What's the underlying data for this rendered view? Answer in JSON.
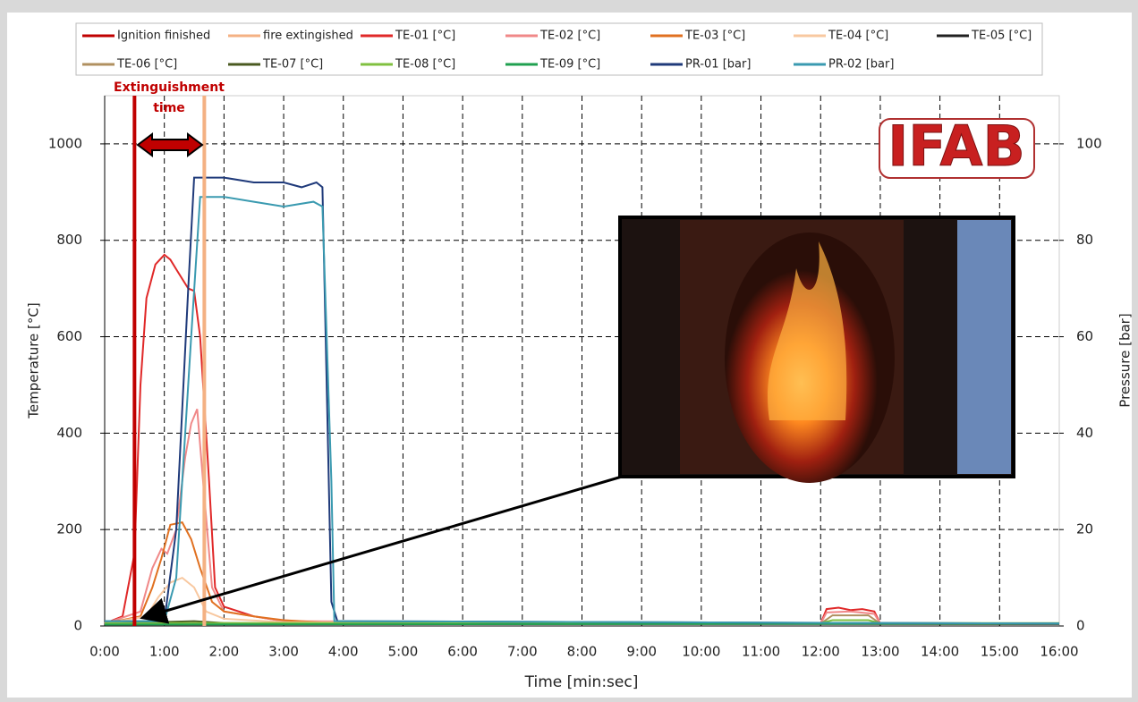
{
  "chart_data": {
    "type": "line",
    "x_label": "Time [min:sec]",
    "y_label": "Temperature [°C]",
    "y2_label": "Pressure [bar]",
    "annotation": [
      "Extinguishment",
      "time"
    ],
    "logo": "IFAB",
    "xlim": [
      0,
      16
    ],
    "ylim": [
      0,
      1100
    ],
    "y2lim": [
      0,
      110
    ],
    "grid": true,
    "xticks": [
      {
        "value": 0,
        "label": "0:00"
      },
      {
        "value": 1,
        "label": "1:00"
      },
      {
        "value": 2,
        "label": "2:00"
      },
      {
        "value": 3,
        "label": "3:00"
      },
      {
        "value": 4,
        "label": "4:00"
      },
      {
        "value": 5,
        "label": "5:00"
      },
      {
        "value": 6,
        "label": "6:00"
      },
      {
        "value": 7,
        "label": "7:00"
      },
      {
        "value": 8,
        "label": "8:00"
      },
      {
        "value": 9,
        "label": "9:00"
      },
      {
        "value": 10,
        "label": "10:00"
      },
      {
        "value": 11,
        "label": "11:00"
      },
      {
        "value": 12,
        "label": "12:00"
      },
      {
        "value": 13,
        "label": "13:00"
      },
      {
        "value": 14,
        "label": "14:00"
      },
      {
        "value": 15,
        "label": "15:00"
      },
      {
        "value": 16,
        "label": "16:00"
      }
    ],
    "yticks": [
      0,
      200,
      400,
      600,
      800,
      1000
    ],
    "y2ticks": [
      0,
      20,
      40,
      60,
      80,
      100
    ],
    "vlines": [
      {
        "name": "Ignition finished",
        "color": "#c00000",
        "x": 0.5
      },
      {
        "name": "fire extingished",
        "color": "#f4b183",
        "x": 1.67
      }
    ],
    "series": [
      {
        "name": "TE-01 [°C]",
        "color": "#e02828",
        "x": [
          0,
          0.3,
          0.5,
          0.6,
          0.7,
          0.85,
          1.0,
          1.1,
          1.2,
          1.4,
          1.5,
          1.6,
          1.75,
          1.85,
          2.0,
          2.5,
          3,
          4,
          12,
          12.1,
          12.3,
          12.5,
          12.7,
          12.9,
          13,
          16
        ],
        "values": [
          5,
          20,
          150,
          500,
          680,
          750,
          770,
          760,
          740,
          700,
          695,
          600,
          300,
          80,
          40,
          20,
          10,
          5,
          5,
          35,
          38,
          33,
          35,
          30,
          5,
          5
        ]
      },
      {
        "name": "TE-02 [°C]",
        "color": "#f08888",
        "x": [
          0,
          0.6,
          0.8,
          0.95,
          1.05,
          1.2,
          1.35,
          1.45,
          1.55,
          1.65,
          1.8,
          2.0,
          3,
          12,
          12.1,
          12.5,
          12.9,
          13,
          16
        ],
        "values": [
          5,
          30,
          120,
          160,
          150,
          200,
          350,
          420,
          450,
          300,
          80,
          30,
          10,
          5,
          28,
          30,
          25,
          5,
          5
        ]
      },
      {
        "name": "TE-03 [°C]",
        "color": "#e07020",
        "x": [
          0,
          0.6,
          0.8,
          0.95,
          1.1,
          1.3,
          1.45,
          1.6,
          1.8,
          2.0,
          2.5,
          3,
          4,
          16
        ],
        "values": [
          5,
          20,
          80,
          140,
          210,
          215,
          180,
          120,
          50,
          30,
          20,
          12,
          5,
          5
        ]
      },
      {
        "name": "TE-04 [°C]",
        "color": "#f8c8a0",
        "x": [
          0,
          0.7,
          0.9,
          1.1,
          1.3,
          1.5,
          1.7,
          2.0,
          3,
          16
        ],
        "values": [
          5,
          20,
          60,
          90,
          100,
          80,
          30,
          15,
          8,
          5
        ]
      },
      {
        "name": "TE-05 [°C]",
        "color": "#202020",
        "x": [
          0,
          16
        ],
        "values": [
          4,
          4
        ]
      },
      {
        "name": "TE-06 [°C]",
        "color": "#b09060",
        "x": [
          0,
          2,
          12,
          12.2,
          12.8,
          13,
          16
        ],
        "values": [
          5,
          5,
          5,
          22,
          22,
          5,
          5
        ]
      },
      {
        "name": "TE-07 [°C]",
        "color": "#4a5a20",
        "x": [
          0,
          1.5,
          2,
          16
        ],
        "values": [
          5,
          10,
          6,
          4
        ]
      },
      {
        "name": "TE-08 [°C]",
        "color": "#80c040",
        "x": [
          0,
          12,
          12.2,
          12.8,
          13,
          16
        ],
        "values": [
          6,
          6,
          12,
          12,
          6,
          6
        ]
      },
      {
        "name": "TE-09 [°C]",
        "color": "#20a050",
        "x": [
          0,
          16
        ],
        "values": [
          3,
          5
        ]
      },
      {
        "name": "PR-01 [bar]",
        "color": "#1f3a7a",
        "axis": "y2",
        "x": [
          0,
          0.5,
          1.0,
          1.2,
          1.4,
          1.5,
          2,
          2.5,
          3,
          3.3,
          3.55,
          3.65,
          3.8,
          3.9,
          16
        ],
        "values": [
          1,
          1,
          1,
          20,
          70,
          93,
          93,
          92,
          92,
          91,
          92,
          91,
          5,
          1,
          0.5
        ]
      },
      {
        "name": "PR-02 [bar]",
        "color": "#3a9ab0",
        "axis": "y2",
        "x": [
          0,
          1.0,
          1.2,
          1.45,
          1.6,
          2,
          2.5,
          3,
          3.5,
          3.65,
          3.8,
          3.85,
          16
        ],
        "values": [
          1,
          1,
          10,
          60,
          89,
          89,
          88,
          87,
          88,
          87,
          30,
          1,
          0.5
        ]
      }
    ]
  }
}
